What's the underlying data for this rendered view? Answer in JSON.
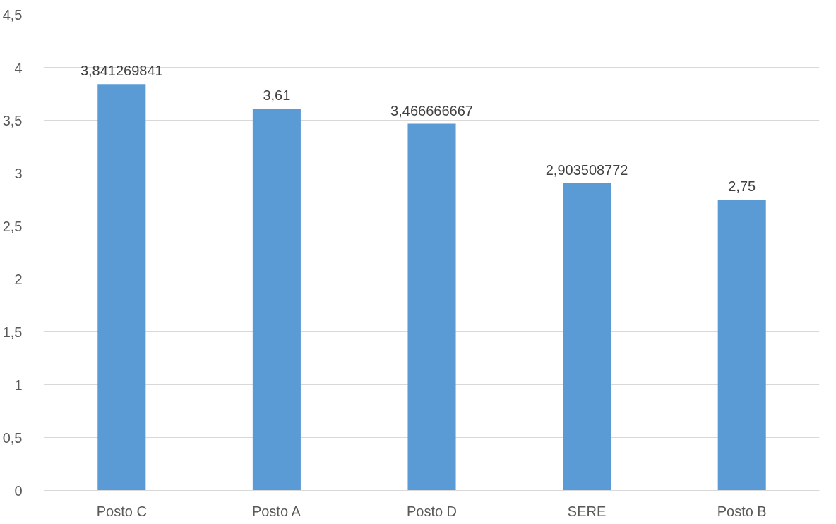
{
  "chart_data": {
    "type": "bar",
    "categories": [
      "Posto C",
      "Posto A",
      "Posto D",
      "SERE",
      "Posto B"
    ],
    "values": [
      3.841269841,
      3.61,
      3.466666667,
      2.903508772,
      2.75
    ],
    "value_labels": [
      "3,841269841",
      "3,61",
      "3,466666667",
      "2,903508772",
      "2,75"
    ],
    "color": "#5b9bd5",
    "ylim": [
      0,
      4.5
    ],
    "yticks": [
      0,
      {
        "value": 0.5,
        "label": "0,5"
      },
      1,
      {
        "value": 1.5,
        "label": "1,5"
      },
      2,
      {
        "value": 2.5,
        "label": "2,5"
      },
      3,
      {
        "value": 3.5,
        "label": "3,5"
      },
      4,
      {
        "value": 4.5,
        "label": "4,5"
      }
    ],
    "grid": "y"
  }
}
